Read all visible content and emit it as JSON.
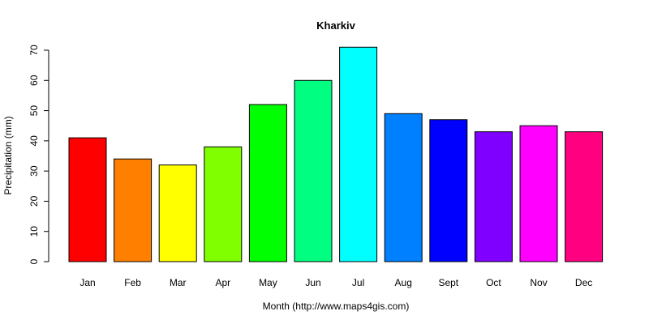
{
  "chart_data": {
    "type": "bar",
    "title": "Kharkiv",
    "xlabel": "Month (http://www.maps4gis.com)",
    "ylabel": "Precipitation (mm)",
    "ylim": [
      0,
      70
    ],
    "yticks": [
      0,
      10,
      20,
      30,
      40,
      50,
      60,
      70
    ],
    "categories": [
      "Jan",
      "Feb",
      "Mar",
      "Apr",
      "May",
      "Jun",
      "Jul",
      "Aug",
      "Sept",
      "Oct",
      "Nov",
      "Dec"
    ],
    "values": [
      41,
      34,
      32,
      38,
      52,
      60,
      71,
      49,
      47,
      43,
      45,
      43
    ],
    "colors": [
      "#FF0000",
      "#FF8000",
      "#FFFF00",
      "#80FF00",
      "#00FF00",
      "#00FF80",
      "#00FFFF",
      "#0080FF",
      "#0000FF",
      "#8000FF",
      "#FF00FF",
      "#FF0080"
    ],
    "grid": false,
    "legend": "none"
  }
}
